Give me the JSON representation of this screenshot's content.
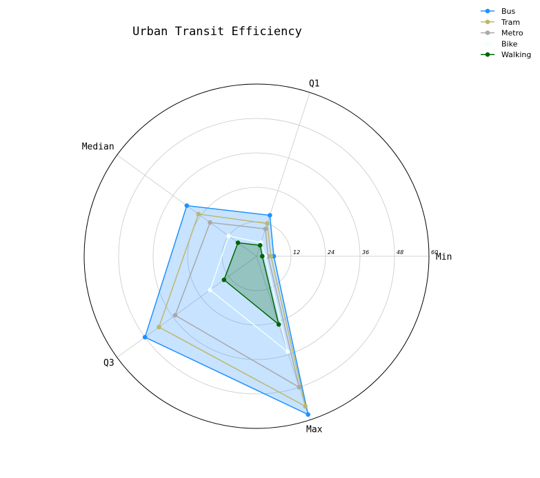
{
  "chart_data": {
    "type": "radar",
    "title": "Urban Transit Efficiency",
    "axes": [
      "Min",
      "Q1",
      "Median",
      "Q3",
      "Max"
    ],
    "rlim": [
      0,
      60
    ],
    "rticks": [
      "12",
      "24",
      "36",
      "48",
      "60"
    ],
    "rtick_values": [
      12,
      24,
      36,
      48,
      60
    ],
    "grid": true,
    "legend_position": "upper-right (outside plot)",
    "series": [
      {
        "name": "Bus",
        "color": "#1e90ff",
        "fill": true,
        "values": [
          6,
          15,
          30,
          48,
          58
        ]
      },
      {
        "name": "Tram",
        "color": "#bdb76b",
        "fill": false,
        "values": [
          5,
          12,
          25,
          42,
          55
        ]
      },
      {
        "name": "Metro",
        "color": "#a9a9a9",
        "fill": false,
        "values": [
          4,
          10,
          20,
          35,
          48
        ]
      },
      {
        "name": "Bike",
        "color": "#f0ffff",
        "fill": false,
        "values": [
          3,
          5,
          12,
          20,
          35
        ]
      },
      {
        "name": "Walking",
        "color": "#006400",
        "fill": true,
        "values": [
          2,
          4,
          8,
          14,
          25
        ]
      }
    ]
  }
}
